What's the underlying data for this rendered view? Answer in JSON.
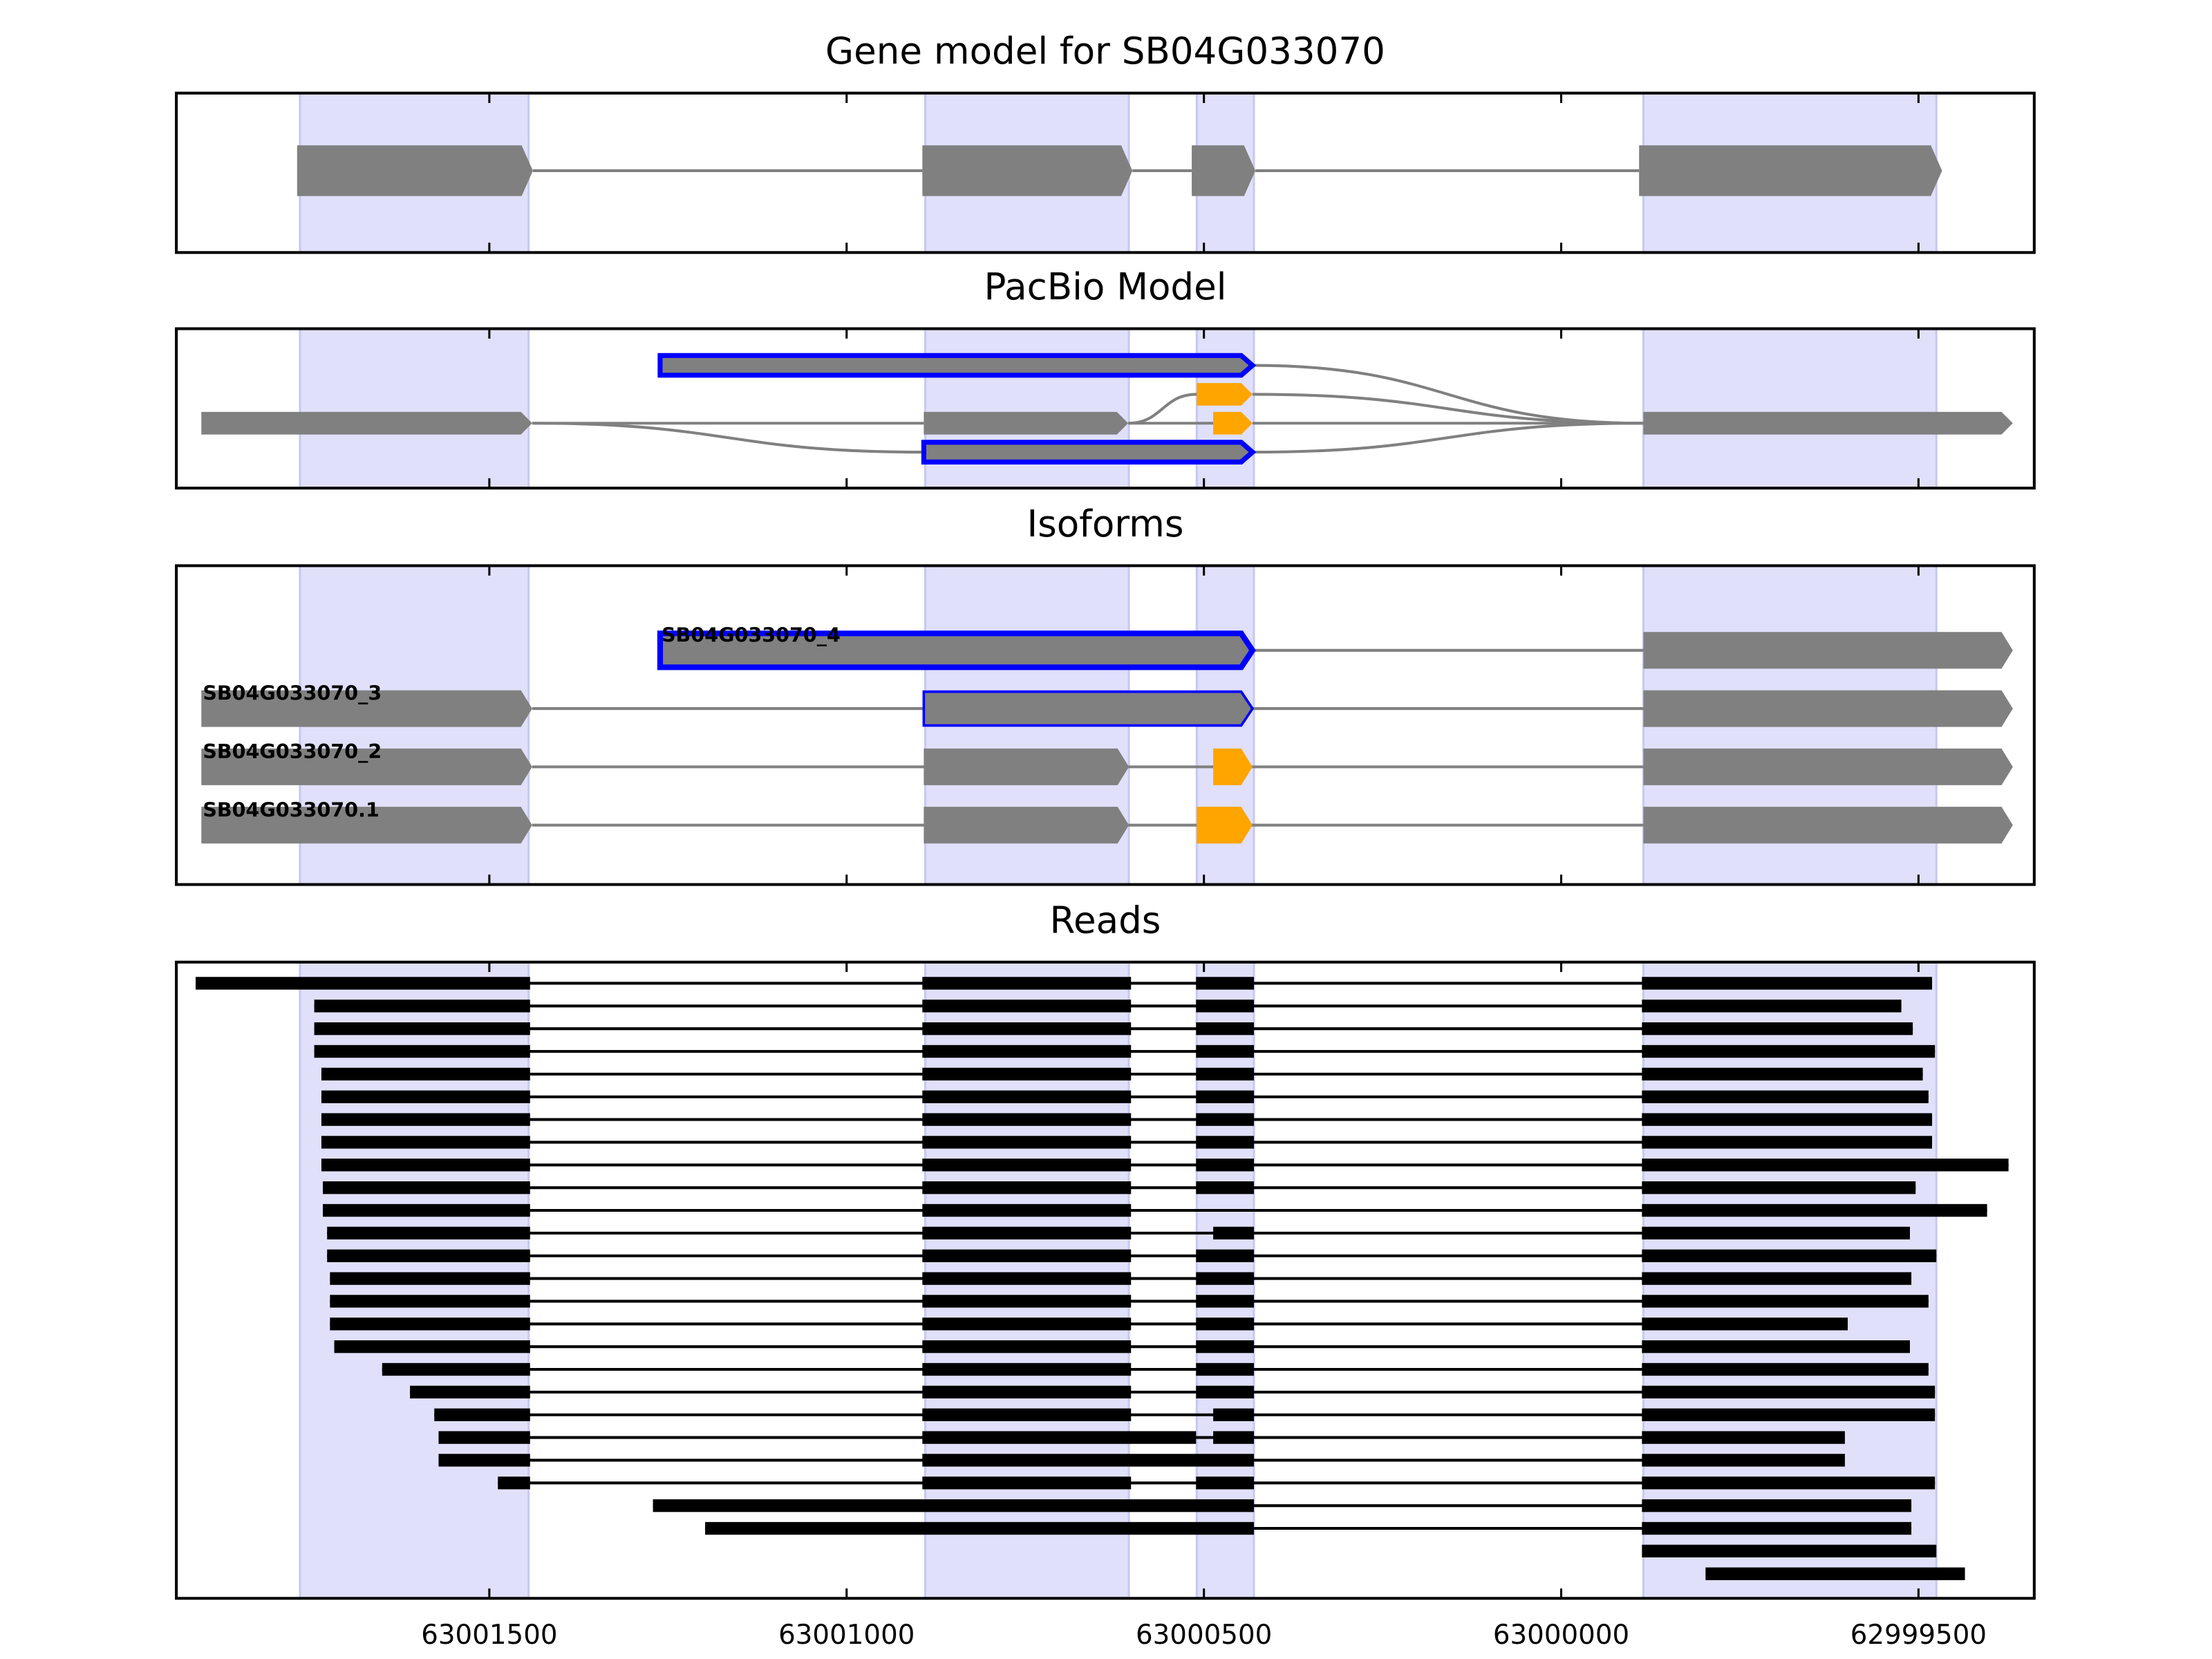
{
  "chart_data": [
    {
      "type": "gene",
      "title": "Gene model for SB04G033070",
      "xlim": [
        63001938,
        62999338
      ],
      "xticks": [
        63001500,
        63001000,
        63000500,
        63000000,
        62999500
      ],
      "highlights": [
        [
          63001765,
          63001445
        ],
        [
          63000890,
          63000605
        ],
        [
          63000510,
          63000430
        ],
        [
          62999885,
          62999475
        ]
      ],
      "highlight_color": "#e0e0fa",
      "color": "#808080",
      "exons": [
        [
          63001769,
          63001439
        ],
        [
          63000894,
          63000600
        ],
        [
          63000517,
          63000428
        ],
        [
          62999891,
          62999467
        ]
      ]
    },
    {
      "type": "pacbio",
      "title": "PacBio Model",
      "xlim": [
        63001938,
        62999338
      ],
      "xticks": [
        63001500,
        63001000,
        63000500,
        63000000,
        62999500
      ],
      "highlights": [
        [
          63001765,
          63001445
        ],
        [
          63000890,
          63000605
        ],
        [
          63000510,
          63000430
        ],
        [
          62999885,
          62999475
        ]
      ],
      "highlight_color": "#e0e0fa",
      "color": "#808080",
      "exons": [
        {
          "start": 63001903,
          "end": 63001440,
          "lane": 0,
          "color": "#808080"
        },
        {
          "start": 63001261,
          "end": 63000432,
          "lane": -2,
          "color": "#808080",
          "outline": "#0000ff"
        },
        {
          "start": 63000892,
          "end": 63000606,
          "lane": 0,
          "color": "#808080"
        },
        {
          "start": 63000510,
          "end": 63000432,
          "lane": -1,
          "color": "#ffa500"
        },
        {
          "start": 63000487,
          "end": 63000432,
          "lane": 0,
          "color": "#ffa500"
        },
        {
          "start": 63000892,
          "end": 63000432,
          "lane": 1,
          "color": "#808080",
          "outline": "#0000ff"
        },
        {
          "start": 62999885,
          "end": 62999368,
          "lane": 0,
          "color": "#808080"
        }
      ],
      "edges": [
        [
          0,
          2
        ],
        [
          0,
          5
        ],
        [
          2,
          3
        ],
        [
          2,
          4
        ],
        [
          1,
          6
        ],
        [
          3,
          6
        ],
        [
          4,
          6
        ],
        [
          5,
          6
        ]
      ]
    },
    {
      "type": "isoforms",
      "title": "Isoforms",
      "xlim": [
        63001938,
        62999338
      ],
      "xticks": [
        63001500,
        63001000,
        63000500,
        63000000,
        62999500
      ],
      "highlights": [
        [
          63001765,
          63001445
        ],
        [
          63000890,
          63000605
        ],
        [
          63000510,
          63000430
        ],
        [
          62999885,
          62999475
        ]
      ],
      "highlight_color": "#e0e0fa",
      "color": "#808080",
      "isoforms": [
        {
          "name": "SB04G033070_4",
          "exons": [
            {
              "start": 63001261,
              "end": 63000432,
              "color": "#808080",
              "outline": "#0000ff"
            },
            {
              "start": 62999885,
              "end": 62999368,
              "color": "#808080"
            }
          ]
        },
        {
          "name": "SB04G033070_3",
          "exons": [
            {
              "start": 63001903,
              "end": 63001440,
              "color": "#808080"
            },
            {
              "start": 63000892,
              "end": 63000432,
              "color": "#808080",
              "outline": "#0000ff"
            },
            {
              "start": 62999885,
              "end": 62999368,
              "color": "#808080"
            }
          ]
        },
        {
          "name": "SB04G033070_2",
          "exons": [
            {
              "start": 63001903,
              "end": 63001440,
              "color": "#808080"
            },
            {
              "start": 63000892,
              "end": 63000605,
              "color": "#808080"
            },
            {
              "start": 63000487,
              "end": 63000432,
              "color": "#ffa500"
            },
            {
              "start": 62999885,
              "end": 62999368,
              "color": "#808080"
            }
          ]
        },
        {
          "name": "SB04G033070.1",
          "exons": [
            {
              "start": 63001903,
              "end": 63001440,
              "color": "#808080"
            },
            {
              "start": 63000892,
              "end": 63000605,
              "color": "#808080"
            },
            {
              "start": 63000510,
              "end": 63000432,
              "color": "#ffa500"
            },
            {
              "start": 62999885,
              "end": 62999368,
              "color": "#808080"
            }
          ]
        }
      ]
    },
    {
      "type": "reads",
      "title": "Reads",
      "xlim": [
        63001938,
        62999338
      ],
      "xticks": [
        63001500,
        63001000,
        63000500,
        63000000,
        62999500
      ],
      "highlights": [
        [
          63001765,
          63001445
        ],
        [
          63000890,
          63000605
        ],
        [
          63000510,
          63000430
        ],
        [
          62999885,
          62999475
        ]
      ],
      "highlight_color": "#e0e0fa",
      "color": "#000000",
      "reads": [
        [
          [
            63001911,
            63001443
          ],
          [
            63000894,
            63000602
          ],
          [
            63000511,
            63000430
          ],
          [
            62999887,
            62999481
          ]
        ],
        [
          [
            63001745,
            63001443
          ],
          [
            63000894,
            63000602
          ],
          [
            63000511,
            63000430
          ],
          [
            62999887,
            62999524
          ]
        ],
        [
          [
            63001745,
            63001443
          ],
          [
            63000894,
            63000602
          ],
          [
            63000511,
            63000430
          ],
          [
            62999887,
            62999508
          ]
        ],
        [
          [
            63001745,
            63001443
          ],
          [
            63000894,
            63000602
          ],
          [
            63000511,
            63000430
          ],
          [
            62999887,
            62999477
          ]
        ],
        [
          [
            63001735,
            63001443
          ],
          [
            63000894,
            63000602
          ],
          [
            63000511,
            63000430
          ],
          [
            62999887,
            62999494
          ]
        ],
        [
          [
            63001735,
            63001443
          ],
          [
            63000894,
            63000602
          ],
          [
            63000511,
            63000430
          ],
          [
            62999887,
            62999486
          ]
        ],
        [
          [
            63001735,
            63001443
          ],
          [
            63000894,
            63000602
          ],
          [
            63000511,
            63000430
          ],
          [
            62999887,
            62999481
          ]
        ],
        [
          [
            63001735,
            63001443
          ],
          [
            63000894,
            63000602
          ],
          [
            63000511,
            63000430
          ],
          [
            62999887,
            62999481
          ]
        ],
        [
          [
            63001735,
            63001443
          ],
          [
            63000894,
            63000602
          ],
          [
            63000511,
            63000430
          ],
          [
            62999887,
            62999374
          ]
        ],
        [
          [
            63001733,
            63001443
          ],
          [
            63000894,
            63000602
          ],
          [
            63000511,
            63000430
          ],
          [
            62999887,
            62999504
          ]
        ],
        [
          [
            63001733,
            63001443
          ],
          [
            63000894,
            63000602
          ],
          [
            62999887,
            62999404
          ]
        ],
        [
          [
            63001727,
            63001443
          ],
          [
            63000894,
            63000602
          ],
          [
            63000487,
            63000430
          ],
          [
            62999887,
            62999512
          ]
        ],
        [
          [
            63001727,
            63001443
          ],
          [
            63000894,
            63000602
          ],
          [
            63000511,
            63000430
          ],
          [
            62999887,
            62999475
          ]
        ],
        [
          [
            63001723,
            63001443
          ],
          [
            63000894,
            63000602
          ],
          [
            63000511,
            63000430
          ],
          [
            62999887,
            62999510
          ]
        ],
        [
          [
            63001723,
            63001443
          ],
          [
            63000894,
            63000602
          ],
          [
            63000511,
            63000430
          ],
          [
            62999887,
            62999486
          ]
        ],
        [
          [
            63001723,
            63001443
          ],
          [
            63000894,
            63000602
          ],
          [
            63000511,
            63000430
          ],
          [
            62999887,
            62999599
          ]
        ],
        [
          [
            63001717,
            63001443
          ],
          [
            63000894,
            63000602
          ],
          [
            63000511,
            63000430
          ],
          [
            62999887,
            62999512
          ]
        ],
        [
          [
            63001650,
            63001443
          ],
          [
            63000894,
            63000602
          ],
          [
            63000511,
            63000430
          ],
          [
            62999887,
            62999486
          ]
        ],
        [
          [
            63001611,
            63001443
          ],
          [
            63000894,
            63000602
          ],
          [
            63000511,
            63000430
          ],
          [
            62999887,
            62999477
          ]
        ],
        [
          [
            63001577,
            63001443
          ],
          [
            63000894,
            63000602
          ],
          [
            63000487,
            63000430
          ],
          [
            62999887,
            62999477
          ]
        ],
        [
          [
            63001571,
            63001443
          ],
          [
            63000894,
            63000511
          ],
          [
            63000487,
            63000430
          ],
          [
            62999887,
            62999603
          ]
        ],
        [
          [
            63001571,
            63001443
          ],
          [
            63000894,
            63000430
          ],
          [
            62999887,
            62999603
          ]
        ],
        [
          [
            63001488,
            63001443
          ],
          [
            63000894,
            63000602
          ],
          [
            63000511,
            63000430
          ],
          [
            62999887,
            62999477
          ]
        ],
        [
          [
            63001271,
            63000430
          ],
          [
            62999887,
            62999510
          ]
        ],
        [
          [
            63001198,
            63000430
          ],
          [
            62999887,
            62999510
          ]
        ],
        [
          [
            62999887,
            62999475
          ]
        ],
        [
          [
            62999798,
            62999435
          ]
        ]
      ]
    }
  ]
}
